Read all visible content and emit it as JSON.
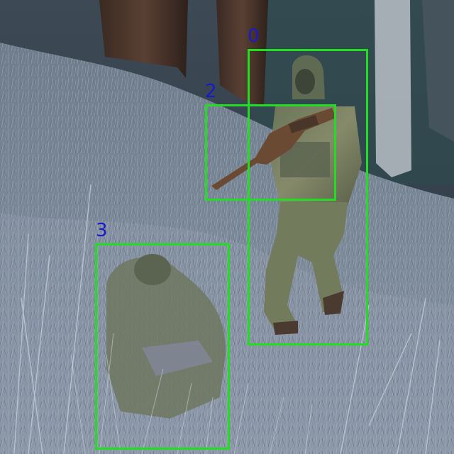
{
  "colors": {
    "box": "#22dd22",
    "label": "#1a1acc"
  },
  "detections": [
    {
      "label": "0",
      "object": "person"
    },
    {
      "label": "2",
      "object": "rifle"
    },
    {
      "label": "3",
      "object": "person"
    }
  ]
}
